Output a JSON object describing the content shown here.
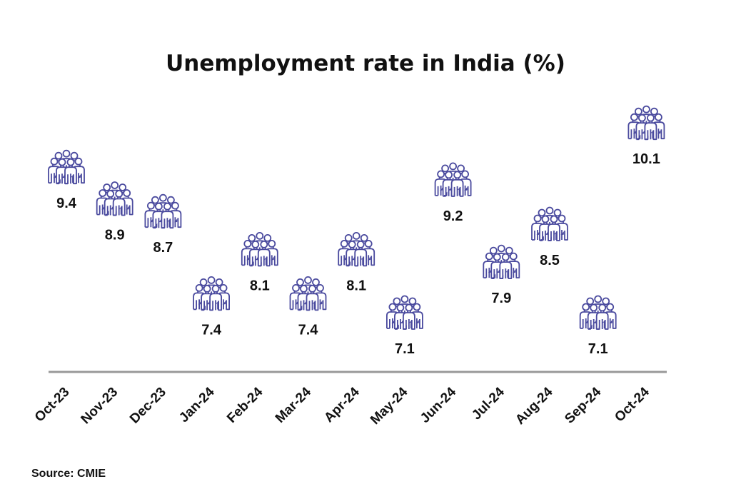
{
  "chart_data": {
    "type": "scatter",
    "title": "Unemployment rate in India (%)",
    "categories": [
      "Oct-23",
      "Nov-23",
      "Dec-23",
      "Jan-24",
      "Feb-24",
      "Mar-24",
      "Apr-24",
      "May-24",
      "Jun-24",
      "Jul-24",
      "Aug-24",
      "Sep-24",
      "Oct-24"
    ],
    "series": [
      {
        "values": [
          9.4,
          8.9,
          8.7,
          7.4,
          8.1,
          7.4,
          8.1,
          7.1,
          9.2,
          7.9,
          8.5,
          7.1,
          10.1
        ],
        "labels": [
          "9.4",
          "8.9",
          "8.7",
          "7.4",
          "8.1",
          "7.4",
          "8.1",
          "7.1",
          "9.2",
          "7.9",
          "8.5",
          "7.1",
          "10.1"
        ]
      }
    ],
    "marker": "people-group-icon",
    "grid": false,
    "legend": "none",
    "colors": {
      "marker": "#4a4a9e",
      "baseline": "#999999",
      "text": "#111111"
    }
  },
  "source": "Source: CMIE"
}
